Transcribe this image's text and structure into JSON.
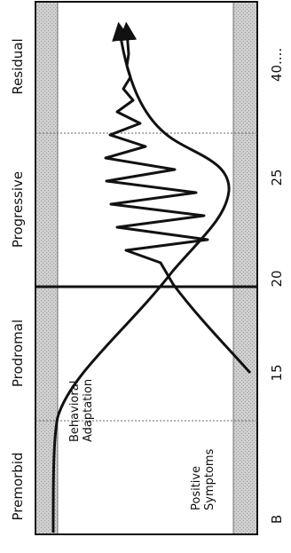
{
  "figure": {
    "stages": [
      "Premorbid",
      "Prodromal",
      "Progressive",
      "Residual"
    ],
    "x_ticks": [
      "B",
      "15",
      "20",
      "25",
      "40...."
    ],
    "curve_labels": {
      "adaptation_line1": "Behavioral",
      "adaptation_line2": "Adaptation",
      "symptoms_line1": "Positive",
      "symptoms_line2": "Symptoms"
    },
    "colors": {
      "band_shade": "#c4c4c4",
      "background": "#ffffff",
      "line": "#111111"
    }
  }
}
